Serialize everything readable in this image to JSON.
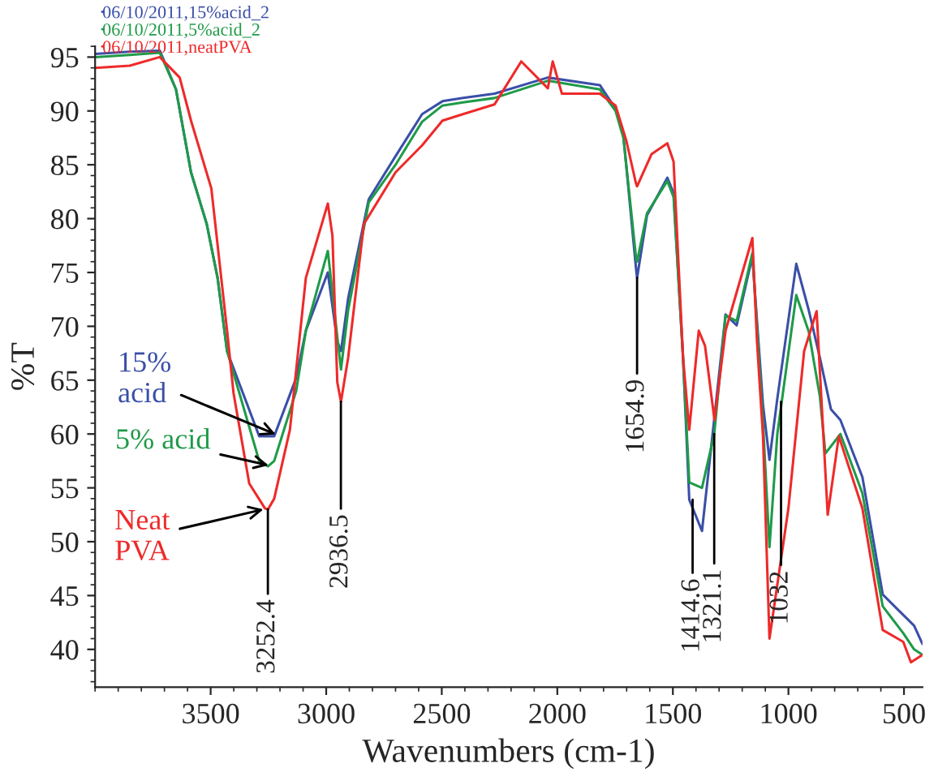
{
  "chart_data": {
    "type": "line",
    "xlabel": "Wavenumbers (cm-1)",
    "ylabel": "%T",
    "xlim": [
      4000,
      420
    ],
    "ylim": [
      36.5,
      96
    ],
    "xticks": [
      3500,
      3000,
      2500,
      2000,
      1500,
      1000,
      500
    ],
    "yticks": [
      40,
      45,
      50,
      55,
      60,
      65,
      70,
      75,
      80,
      85,
      90,
      95
    ],
    "grid": false,
    "legend": "top left",
    "marker": "none",
    "line_style": "solid",
    "series": [
      {
        "name": "06/10/2011,15%acid_2",
        "color": "#3a4fa8",
        "x": [
          4000,
          3850,
          3720,
          3650,
          3585,
          3517,
          3470,
          3429,
          3290,
          3225,
          3130,
          3088,
          2993,
          2952,
          2936,
          2905,
          2816,
          2700,
          2585,
          2497,
          2408,
          2272,
          2041,
          1816,
          1748,
          1714,
          1660,
          1655,
          1612,
          1524,
          1497,
          1456,
          1429,
          1374,
          1326,
          1272,
          1224,
          1156,
          1110,
          1082,
          1048,
          966,
          912,
          864,
          816,
          775,
          680,
          592,
          503,
          456,
          420
        ],
        "values": [
          95.3,
          95.5,
          95.6,
          92,
          84.3,
          79.5,
          74.5,
          67.7,
          59.8,
          59.8,
          65.2,
          69.6,
          75,
          68.6,
          67.7,
          72.6,
          81.8,
          85.8,
          89.7,
          90.9,
          91.2,
          91.6,
          93.1,
          92.4,
          90.2,
          87.7,
          75.5,
          74.5,
          80.3,
          83.8,
          82.4,
          67.1,
          53.9,
          51,
          60.4,
          71.1,
          70.1,
          76.5,
          62.7,
          57.6,
          63.3,
          75.8,
          71.5,
          67.1,
          62.3,
          61.3,
          56,
          45.1,
          43.2,
          42.2,
          40.5
        ]
      },
      {
        "name": "06/10/2011,5%acid_2",
        "color": "#1f9a48",
        "x": [
          4000,
          3850,
          3720,
          3650,
          3585,
          3517,
          3470,
          3429,
          3290,
          3252,
          3225,
          3130,
          3088,
          2993,
          2952,
          2936,
          2905,
          2816,
          2700,
          2585,
          2497,
          2408,
          2272,
          2041,
          1816,
          1748,
          1714,
          1660,
          1655,
          1612,
          1524,
          1497,
          1456,
          1429,
          1374,
          1321,
          1272,
          1224,
          1156,
          1110,
          1082,
          1048,
          966,
          912,
          864,
          840,
          775,
          680,
          592,
          503,
          456,
          420
        ],
        "values": [
          95,
          95.2,
          95.4,
          92,
          84.3,
          79.5,
          74.5,
          67.7,
          57.5,
          57,
          57.5,
          64,
          69.6,
          77,
          69,
          66,
          71.5,
          81.5,
          85,
          89,
          90.5,
          90.8,
          91.2,
          92.8,
          92,
          90,
          87.5,
          76.5,
          76,
          80.5,
          83.5,
          82,
          67.1,
          55.5,
          55,
          60,
          71,
          70.5,
          76.8,
          61,
          49.5,
          60,
          72.9,
          69.5,
          63.5,
          58.2,
          60,
          54.5,
          44,
          41.5,
          40,
          39.5
        ]
      },
      {
        "name": "06/10/2011,neatPVA",
        "color": "#ee2a2a",
        "x": [
          4000,
          3850,
          3720,
          3634,
          3585,
          3497,
          3429,
          3401,
          3333,
          3265,
          3252,
          3225,
          3157,
          3088,
          2993,
          2973,
          2952,
          2936,
          2905,
          2837,
          2700,
          2585,
          2497,
          2408,
          2272,
          2156,
          2041,
          2020,
          1980,
          1816,
          1748,
          1701,
          1660,
          1655,
          1592,
          1524,
          1497,
          1456,
          1429,
          1388,
          1361,
          1320,
          1272,
          1156,
          1136,
          1110,
          1082,
          1000,
          932,
          878,
          830,
          782,
          680,
          592,
          503,
          470,
          420
        ],
        "values": [
          94,
          94.2,
          95,
          93.1,
          89.1,
          82.8,
          69.6,
          63.8,
          55.4,
          53.1,
          53,
          54,
          60.4,
          74.5,
          81.4,
          78.4,
          64.8,
          63,
          67.1,
          79.5,
          84.3,
          86.8,
          89.1,
          89.7,
          90.6,
          94.6,
          92.1,
          94.6,
          91.6,
          91.6,
          90.5,
          87.2,
          83.3,
          83,
          86,
          87,
          85.3,
          67.1,
          60.4,
          69.6,
          68.2,
          61.3,
          69.6,
          78.2,
          68.6,
          59.8,
          41,
          53.1,
          67.7,
          71.4,
          52.5,
          59.8,
          53.1,
          41.8,
          40.7,
          38.8,
          39.5
        ]
      }
    ],
    "annotations": [
      {
        "text": "15%\nacid",
        "x": 3200,
        "y": 59.8
      },
      {
        "text": "5% acid",
        "x": 3230,
        "y": 57
      },
      {
        "text": "Neat\nPVA",
        "x": 3252.4,
        "y": 53.1
      },
      {
        "text": "3252.4",
        "x": 3252.4,
        "y": 53
      },
      {
        "text": "2936.5",
        "x": 2936.5,
        "y": 63
      },
      {
        "text": "1654.9",
        "x": 1654.9,
        "y": 74.5
      },
      {
        "text": "1414.6",
        "x": 1414.6,
        "y": 53.9
      },
      {
        "text": "1321.1",
        "x": 1321.1,
        "y": 60
      },
      {
        "text": "1032",
        "x": 1032,
        "y": 63
      }
    ]
  }
}
